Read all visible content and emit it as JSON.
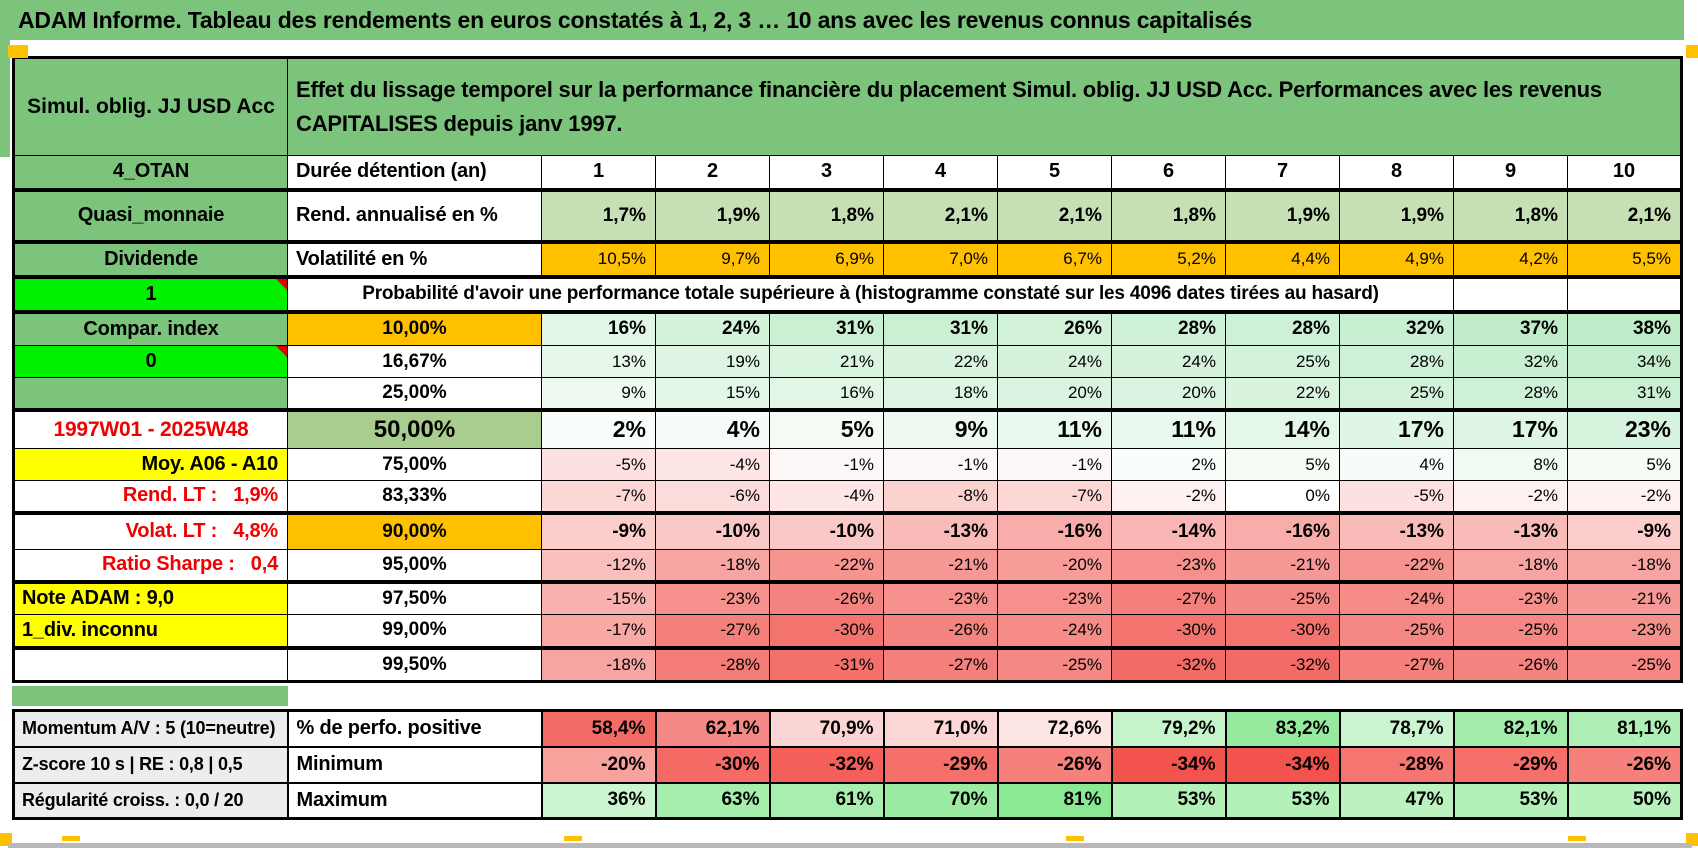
{
  "page": {
    "title": "ADAM Informe. Tableau des rendements en euros constatés à 1, 2, 3 … 10 ans avec les revenus connus capitalisés"
  },
  "colors": {
    "header_green": "#7cc47c",
    "mid_green": "#a9cd8e",
    "bright_green": "#00f000",
    "orange": "#ffc000",
    "yellow": "#ffff00",
    "sage": "#c7dfb5",
    "red_text": "#f00000",
    "heat_red": "#f26863",
    "heat_green": "#8ce896"
  },
  "table": {
    "corner_label": "Simul. oblig. JJ USD Acc",
    "description": "Effet du lissage temporel sur la performance financière du placement Simul. oblig. JJ USD Acc. Performances avec les revenus\nCAPITALISES depuis janv 1997.",
    "columns": [
      "1",
      "2",
      "3",
      "4",
      "5",
      "6",
      "7",
      "8",
      "9",
      "10"
    ],
    "rows": [
      {
        "name": "duree-detention",
        "type": "columns",
        "a": {
          "text": "4_OTAN",
          "style": "green"
        },
        "b": {
          "text": "Durée détention (an)",
          "style": "label"
        }
      },
      {
        "name": "rendement-annualise",
        "a": {
          "text": "Quasi_monnaie",
          "style": "green"
        },
        "b": {
          "text": "Rend. annualisé en %",
          "style": "label"
        },
        "values": [
          "1,7%",
          "1,9%",
          "1,8%",
          "2,1%",
          "2,1%",
          "1,8%",
          "1,9%",
          "1,9%",
          "1,8%",
          "2,1%"
        ],
        "heat": "sage",
        "bold": true,
        "thickTop": true
      },
      {
        "name": "volatilite",
        "a": {
          "text": "Dividende",
          "style": "green"
        },
        "b": {
          "text": "Volatilité en %",
          "style": "label"
        },
        "values": [
          "10,5%",
          "9,7%",
          "6,9%",
          "7,0%",
          "6,7%",
          "5,2%",
          "4,4%",
          "4,9%",
          "4,2%",
          "5,5%"
        ],
        "heat": "orange",
        "bold": false,
        "thickTop": true
      },
      {
        "name": "probabilite-header",
        "type": "merged",
        "a": {
          "text": "1",
          "style": "bright",
          "comment": true
        },
        "merged_text": "Probabilité d'avoir une performance totale supérieure à (histogramme constaté sur les 4096 dates tirées au hasard)",
        "thickTop": true
      },
      {
        "name": "seuil-10",
        "a": {
          "text": "Compar. index",
          "style": "green"
        },
        "b": {
          "text": "10,00%",
          "style": "pct-orange"
        },
        "values": [
          "16%",
          "24%",
          "31%",
          "31%",
          "26%",
          "28%",
          "28%",
          "32%",
          "37%",
          "38%"
        ],
        "heat": "mint",
        "bold": true,
        "thickTop": true
      },
      {
        "name": "seuil-16-67",
        "a": {
          "text": "0",
          "style": "bright",
          "comment": true
        },
        "b": {
          "text": "16,67%",
          "style": "pct"
        },
        "values": [
          "13%",
          "19%",
          "21%",
          "22%",
          "24%",
          "24%",
          "25%",
          "28%",
          "32%",
          "34%"
        ],
        "heat": "mint",
        "bold": false
      },
      {
        "name": "seuil-25",
        "a": {
          "text": "",
          "style": "green"
        },
        "b": {
          "text": "25,00%",
          "style": "pct"
        },
        "values": [
          "9%",
          "15%",
          "16%",
          "18%",
          "20%",
          "20%",
          "22%",
          "25%",
          "28%",
          "31%"
        ],
        "heat": "mint",
        "bold": false
      },
      {
        "name": "seuil-50",
        "a": {
          "text": "1997W01 - 2025W48",
          "style": "red-center"
        },
        "b": {
          "text": "50,00%",
          "style": "pct-green"
        },
        "values": [
          "2%",
          "4%",
          "5%",
          "9%",
          "11%",
          "11%",
          "14%",
          "17%",
          "17%",
          "23%"
        ],
        "heat": "mint",
        "bold": true,
        "big": true,
        "thickTop": true
      },
      {
        "name": "seuil-75",
        "a": {
          "text": "Moy. A06 - A10",
          "style": "yellow-right"
        },
        "b": {
          "text": "75,00%",
          "style": "pct"
        },
        "values": [
          "-5%",
          "-4%",
          "-1%",
          "-1%",
          "-1%",
          "2%",
          "5%",
          "4%",
          "8%",
          "5%"
        ],
        "heat": "mint",
        "bold": false
      },
      {
        "name": "seuil-83-33",
        "a": {
          "text": "Rend. LT :   1,9%",
          "style": "red-right"
        },
        "b": {
          "text": "83,33%",
          "style": "pct"
        },
        "values": [
          "-7%",
          "-6%",
          "-4%",
          "-8%",
          "-7%",
          "-2%",
          "0%",
          "-5%",
          "-2%",
          "-2%"
        ],
        "heat": "mint",
        "bold": false
      },
      {
        "name": "seuil-90",
        "a": {
          "text": "Volat. LT :   4,8%",
          "style": "red-right"
        },
        "b": {
          "text": "90,00%",
          "style": "pct-orange"
        },
        "values": [
          "-9%",
          "-10%",
          "-10%",
          "-13%",
          "-16%",
          "-14%",
          "-16%",
          "-13%",
          "-13%",
          "-9%"
        ],
        "heat": "mint",
        "bold": true,
        "thickTop": true
      },
      {
        "name": "seuil-95",
        "a": {
          "text": "Ratio Sharpe :   0,4",
          "style": "red-right"
        },
        "b": {
          "text": "95,00%",
          "style": "pct"
        },
        "values": [
          "-12%",
          "-18%",
          "-22%",
          "-21%",
          "-20%",
          "-23%",
          "-21%",
          "-22%",
          "-18%",
          "-18%"
        ],
        "heat": "mint",
        "bold": false
      },
      {
        "name": "seuil-97-5",
        "a": {
          "text": "Note ADAM : 9,0",
          "style": "yellow-left"
        },
        "b": {
          "text": "97,50%",
          "style": "pct"
        },
        "values": [
          "-15%",
          "-23%",
          "-26%",
          "-23%",
          "-23%",
          "-27%",
          "-25%",
          "-24%",
          "-23%",
          "-21%"
        ],
        "heat": "mint",
        "bold": false,
        "thickTop": true
      },
      {
        "name": "seuil-99",
        "a": {
          "text": "1_div. inconnu",
          "style": "yellow-left"
        },
        "b": {
          "text": "99,00%",
          "style": "pct"
        },
        "values": [
          "-17%",
          "-27%",
          "-30%",
          "-26%",
          "-24%",
          "-30%",
          "-30%",
          "-25%",
          "-25%",
          "-23%"
        ],
        "heat": "mint",
        "bold": false
      },
      {
        "name": "seuil-99-5",
        "a": {
          "text": "",
          "style": "white"
        },
        "b": {
          "text": "99,50%",
          "style": "pct"
        },
        "values": [
          "-18%",
          "-28%",
          "-31%",
          "-27%",
          "-25%",
          "-32%",
          "-32%",
          "-27%",
          "-26%",
          "-25%"
        ],
        "heat": "mint",
        "bold": false,
        "thickTop": true
      }
    ],
    "bottom_rows": [
      {
        "name": "perfo-positive",
        "a": "Momentum A/V : 5 (10=neutre)",
        "b": "% de perfo. positive",
        "values": [
          "58,4%",
          "62,1%",
          "70,9%",
          "71,0%",
          "72,6%",
          "79,2%",
          "83,2%",
          "78,7%",
          "82,1%",
          "81,1%"
        ],
        "heat": "perfo"
      },
      {
        "name": "minimum",
        "a": "Z-score 10 s | RE : 0,8 | 0,5",
        "b": "Minimum",
        "values": [
          "-20%",
          "-30%",
          "-32%",
          "-29%",
          "-26%",
          "-34%",
          "-34%",
          "-28%",
          "-29%",
          "-26%"
        ],
        "heat": "min"
      },
      {
        "name": "maximum",
        "a": "Régularité croiss. : 0,0 / 20",
        "b": "Maximum",
        "values": [
          "36%",
          "63%",
          "61%",
          "70%",
          "81%",
          "53%",
          "53%",
          "47%",
          "53%",
          "50%"
        ],
        "heat": "max"
      }
    ]
  }
}
